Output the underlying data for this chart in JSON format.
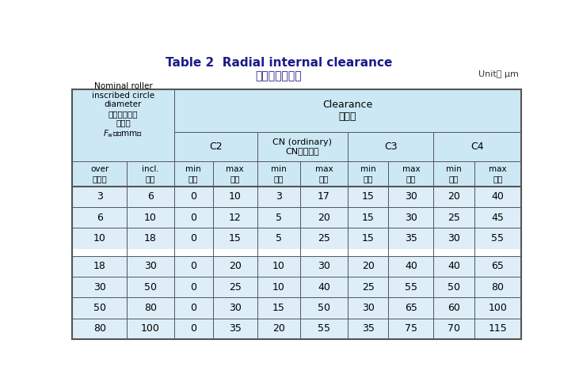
{
  "title_line1": "Table 2  Radial internal clearance",
  "title_line2": "ラジアルすきま",
  "unit_text": "Unit： μm",
  "header_bg": "#cce8f5",
  "data_bg": "#ddeef8",
  "border_color": "#555555",
  "title_color": "#1a1a8c",
  "col1_header_line1": "Nominal roller",
  "col1_header_line2": "inscribed circle",
  "col1_header_line3": "diameter",
  "col1_header_line4": "ころ内接円径",
  "col1_header_line5": "の呼び",
  "col1_header_line6": "$F_{\\mathrm{w}}$　（mm）",
  "clearance_en": "Clearance",
  "clearance_jp": "すきま",
  "c2_label": "C2",
  "cn_label_en": "CN (ordinary)",
  "cn_label_jp": "CN（普通）",
  "c3_label": "C3",
  "c4_label": "C4",
  "over_en": "over",
  "over_jp": "を超え",
  "incl_en": "incl.",
  "incl_jp": "以下",
  "min_en": "min",
  "min_jp": "最小",
  "max_en": "max",
  "max_jp": "最大",
  "data_rows": [
    [
      3,
      6,
      0,
      10,
      3,
      17,
      15,
      30,
      20,
      40
    ],
    [
      6,
      10,
      0,
      12,
      5,
      20,
      15,
      30,
      25,
      45
    ],
    [
      10,
      18,
      0,
      15,
      5,
      25,
      15,
      35,
      30,
      55
    ],
    [
      18,
      30,
      0,
      20,
      10,
      30,
      20,
      40,
      40,
      65
    ],
    [
      30,
      50,
      0,
      25,
      10,
      40,
      25,
      55,
      50,
      80
    ],
    [
      50,
      80,
      0,
      30,
      15,
      50,
      30,
      65,
      60,
      100
    ],
    [
      80,
      100,
      0,
      35,
      20,
      55,
      35,
      75,
      70,
      115
    ]
  ],
  "figsize": [
    7.31,
    4.87
  ],
  "dpi": 100
}
